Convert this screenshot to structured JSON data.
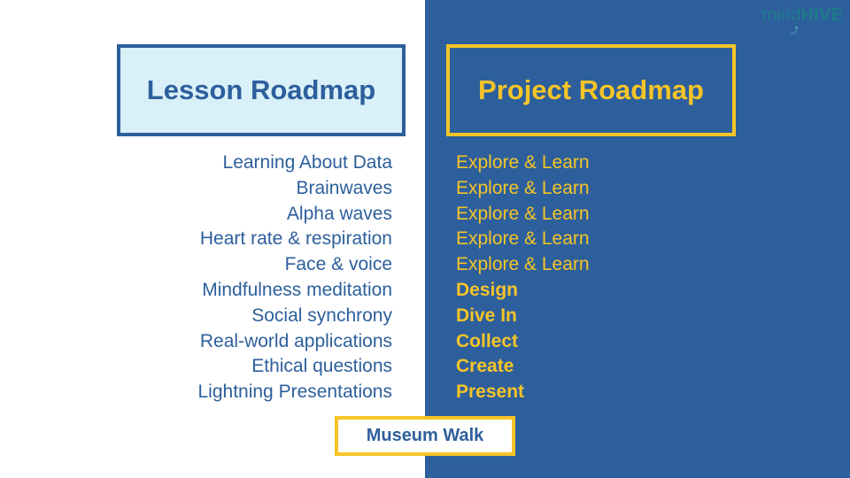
{
  "logo": {
    "part1": "mind",
    "part2": "HIVE"
  },
  "lesson_roadmap": {
    "title": "Lesson Roadmap",
    "items": [
      "Learning About Data",
      "Brainwaves",
      "Alpha waves",
      "Heart rate & respiration",
      "Face & voice",
      "Mindfulness meditation",
      "Social synchrony",
      "Real-world applications",
      "Ethical questions",
      "Lightning Presentations"
    ]
  },
  "project_roadmap": {
    "title": "Project Roadmap",
    "items": [
      "Explore & Learn",
      "Explore & Learn",
      "Explore & Learn",
      "Explore & Learn",
      "Explore & Learn",
      "Design",
      "Dive In",
      "Collect",
      "Create",
      "Present"
    ]
  },
  "museum_walk": "Museum Walk",
  "colors": {
    "blue": "#2d5f9c",
    "yellow": "#f5c428",
    "light_blue": "#d9f0f8",
    "teal": "#1f7a8c"
  }
}
